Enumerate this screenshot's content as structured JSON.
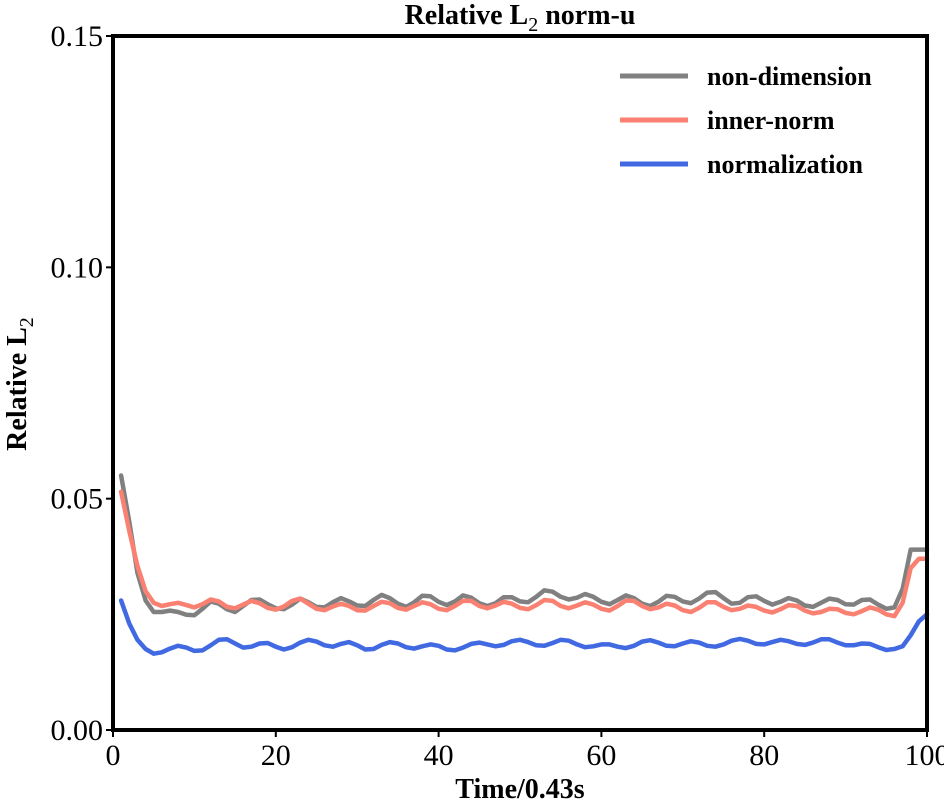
{
  "chart_data": {
    "type": "line",
    "title": "Relative L2 norm-u",
    "title_parts": {
      "main": "Relative L",
      "sub": "2",
      "suffix": " norm-u"
    },
    "xlabel": "Time/0.43s",
    "ylabel": "Relative L2",
    "ylabel_parts": {
      "main": "Relative L",
      "sub": "2"
    },
    "xlim": [
      0,
      100
    ],
    "ylim": [
      0,
      0.15
    ],
    "xticks": [
      0,
      20,
      40,
      60,
      80,
      100
    ],
    "xtick_labels": [
      "0",
      "20",
      "40",
      "60",
      "80",
      "100"
    ],
    "yticks": [
      0,
      0.05,
      0.1,
      0.15
    ],
    "ytick_labels": [
      "0.00",
      "0.05",
      "0.10",
      "0.15"
    ],
    "grid": false,
    "legend_position": "top-right",
    "series": [
      {
        "name": "non-dimension",
        "color": "#808080",
        "x": [
          1,
          2,
          3,
          4,
          5,
          6,
          7,
          8,
          9,
          10,
          11,
          12,
          13,
          14,
          15,
          16,
          17,
          18,
          19,
          20,
          21,
          22,
          23,
          24,
          25,
          26,
          27,
          28,
          29,
          30,
          31,
          32,
          33,
          34,
          35,
          36,
          37,
          38,
          39,
          40,
          41,
          42,
          43,
          44,
          45,
          46,
          47,
          48,
          49,
          50,
          51,
          52,
          53,
          54,
          55,
          56,
          57,
          58,
          59,
          60,
          61,
          62,
          63,
          64,
          65,
          66,
          67,
          68,
          69,
          70,
          71,
          72,
          73,
          74,
          75,
          76,
          77,
          78,
          79,
          80,
          81,
          82,
          83,
          84,
          85,
          86,
          87,
          88,
          89,
          90,
          91,
          92,
          93,
          94,
          95,
          96,
          97,
          98,
          99,
          100
        ],
        "values": [
          0.055,
          0.045,
          0.034,
          0.028,
          0.0255,
          0.0255,
          0.0258,
          0.0255,
          0.0249,
          0.0248,
          0.0262,
          0.0278,
          0.0273,
          0.0261,
          0.0255,
          0.0268,
          0.0281,
          0.0282,
          0.0272,
          0.0263,
          0.0261,
          0.0271,
          0.0284,
          0.0276,
          0.0266,
          0.0265,
          0.0276,
          0.0285,
          0.0278,
          0.0269,
          0.0268,
          0.0281,
          0.0292,
          0.0285,
          0.0273,
          0.0266,
          0.0276,
          0.029,
          0.0289,
          0.0277,
          0.027,
          0.0278,
          0.0291,
          0.0286,
          0.0274,
          0.0268,
          0.0274,
          0.0287,
          0.0287,
          0.0278,
          0.0276,
          0.0288,
          0.0302,
          0.0299,
          0.0288,
          0.0282,
          0.0286,
          0.0294,
          0.0288,
          0.0277,
          0.0272,
          0.0281,
          0.0291,
          0.0285,
          0.0273,
          0.0268,
          0.0277,
          0.029,
          0.0288,
          0.0278,
          0.0274,
          0.0284,
          0.0297,
          0.0298,
          0.0285,
          0.0273,
          0.0275,
          0.0287,
          0.0289,
          0.0279,
          0.0271,
          0.0277,
          0.0285,
          0.028,
          0.0269,
          0.0266,
          0.0275,
          0.0284,
          0.0281,
          0.0272,
          0.0271,
          0.0281,
          0.0282,
          0.0271,
          0.0262,
          0.0265,
          0.0305,
          0.039,
          0.039,
          0.039
        ]
      },
      {
        "name": "inner-norm",
        "color": "#fa8072",
        "x": [
          1,
          2,
          3,
          4,
          5,
          6,
          7,
          8,
          9,
          10,
          11,
          12,
          13,
          14,
          15,
          16,
          17,
          18,
          19,
          20,
          21,
          22,
          23,
          24,
          25,
          26,
          27,
          28,
          29,
          30,
          31,
          32,
          33,
          34,
          35,
          36,
          37,
          38,
          39,
          40,
          41,
          42,
          43,
          44,
          45,
          46,
          47,
          48,
          49,
          50,
          51,
          52,
          53,
          54,
          55,
          56,
          57,
          58,
          59,
          60,
          61,
          62,
          63,
          64,
          65,
          66,
          67,
          68,
          69,
          70,
          71,
          72,
          73,
          74,
          75,
          76,
          77,
          78,
          79,
          80,
          81,
          82,
          83,
          84,
          85,
          86,
          87,
          88,
          89,
          90,
          91,
          92,
          93,
          94,
          95,
          96,
          97,
          98,
          99,
          100
        ],
        "values": [
          0.0515,
          0.043,
          0.0355,
          0.03,
          0.0275,
          0.0268,
          0.0272,
          0.0275,
          0.027,
          0.0265,
          0.0272,
          0.0282,
          0.0278,
          0.0266,
          0.0263,
          0.0271,
          0.0279,
          0.0274,
          0.0264,
          0.026,
          0.0267,
          0.0279,
          0.0284,
          0.0273,
          0.0262,
          0.0259,
          0.0267,
          0.0273,
          0.0268,
          0.0259,
          0.0258,
          0.0268,
          0.0277,
          0.0274,
          0.0264,
          0.026,
          0.0268,
          0.0276,
          0.0272,
          0.0262,
          0.0259,
          0.0268,
          0.0279,
          0.0279,
          0.0268,
          0.0263,
          0.0269,
          0.0277,
          0.0273,
          0.0264,
          0.0261,
          0.027,
          0.0281,
          0.0279,
          0.0268,
          0.0263,
          0.0269,
          0.0276,
          0.0271,
          0.0262,
          0.0258,
          0.0268,
          0.028,
          0.0279,
          0.0268,
          0.0261,
          0.0265,
          0.0273,
          0.0269,
          0.0259,
          0.0255,
          0.0264,
          0.0276,
          0.0276,
          0.0266,
          0.0259,
          0.0262,
          0.0269,
          0.0266,
          0.0258,
          0.0254,
          0.0261,
          0.027,
          0.0268,
          0.0258,
          0.0252,
          0.0255,
          0.0262,
          0.0261,
          0.0253,
          0.025,
          0.0257,
          0.0265,
          0.026,
          0.025,
          0.0246,
          0.0275,
          0.035,
          0.037,
          0.037
        ]
      },
      {
        "name": "normalization",
        "color": "#4169e1",
        "x": [
          1,
          2,
          3,
          4,
          5,
          6,
          7,
          8,
          9,
          10,
          11,
          12,
          13,
          14,
          15,
          16,
          17,
          18,
          19,
          20,
          21,
          22,
          23,
          24,
          25,
          26,
          27,
          28,
          29,
          30,
          31,
          32,
          33,
          34,
          35,
          36,
          37,
          38,
          39,
          40,
          41,
          42,
          43,
          44,
          45,
          46,
          47,
          48,
          49,
          50,
          51,
          52,
          53,
          54,
          55,
          56,
          57,
          58,
          59,
          60,
          61,
          62,
          63,
          64,
          65,
          66,
          67,
          68,
          69,
          70,
          71,
          72,
          73,
          74,
          75,
          76,
          77,
          78,
          79,
          80,
          81,
          82,
          83,
          84,
          85,
          86,
          87,
          88,
          89,
          90,
          91,
          92,
          93,
          94,
          95,
          96,
          97,
          98,
          99,
          100
        ],
        "values": [
          0.028,
          0.023,
          0.0195,
          0.0175,
          0.0165,
          0.0168,
          0.0176,
          0.0182,
          0.0178,
          0.0171,
          0.0172,
          0.0183,
          0.0195,
          0.0196,
          0.0187,
          0.0178,
          0.018,
          0.0187,
          0.0188,
          0.018,
          0.0174,
          0.0179,
          0.0189,
          0.0195,
          0.0191,
          0.0183,
          0.018,
          0.0186,
          0.019,
          0.0183,
          0.0174,
          0.0175,
          0.0184,
          0.019,
          0.0187,
          0.0179,
          0.0176,
          0.0181,
          0.0185,
          0.0182,
          0.0174,
          0.0172,
          0.0178,
          0.0186,
          0.0189,
          0.0185,
          0.0181,
          0.0184,
          0.0192,
          0.0195,
          0.019,
          0.0183,
          0.0182,
          0.0188,
          0.0195,
          0.0193,
          0.0185,
          0.0179,
          0.0181,
          0.0185,
          0.0185,
          0.018,
          0.0177,
          0.0182,
          0.0191,
          0.0194,
          0.0189,
          0.0182,
          0.0181,
          0.0187,
          0.0192,
          0.0189,
          0.0182,
          0.018,
          0.0185,
          0.0193,
          0.0197,
          0.0193,
          0.0186,
          0.0185,
          0.019,
          0.0195,
          0.0192,
          0.0186,
          0.0184,
          0.0189,
          0.0196,
          0.0196,
          0.0189,
          0.0183,
          0.0183,
          0.0187,
          0.0186,
          0.0179,
          0.0173,
          0.0175,
          0.0181,
          0.0205,
          0.0235,
          0.025
        ]
      }
    ]
  }
}
